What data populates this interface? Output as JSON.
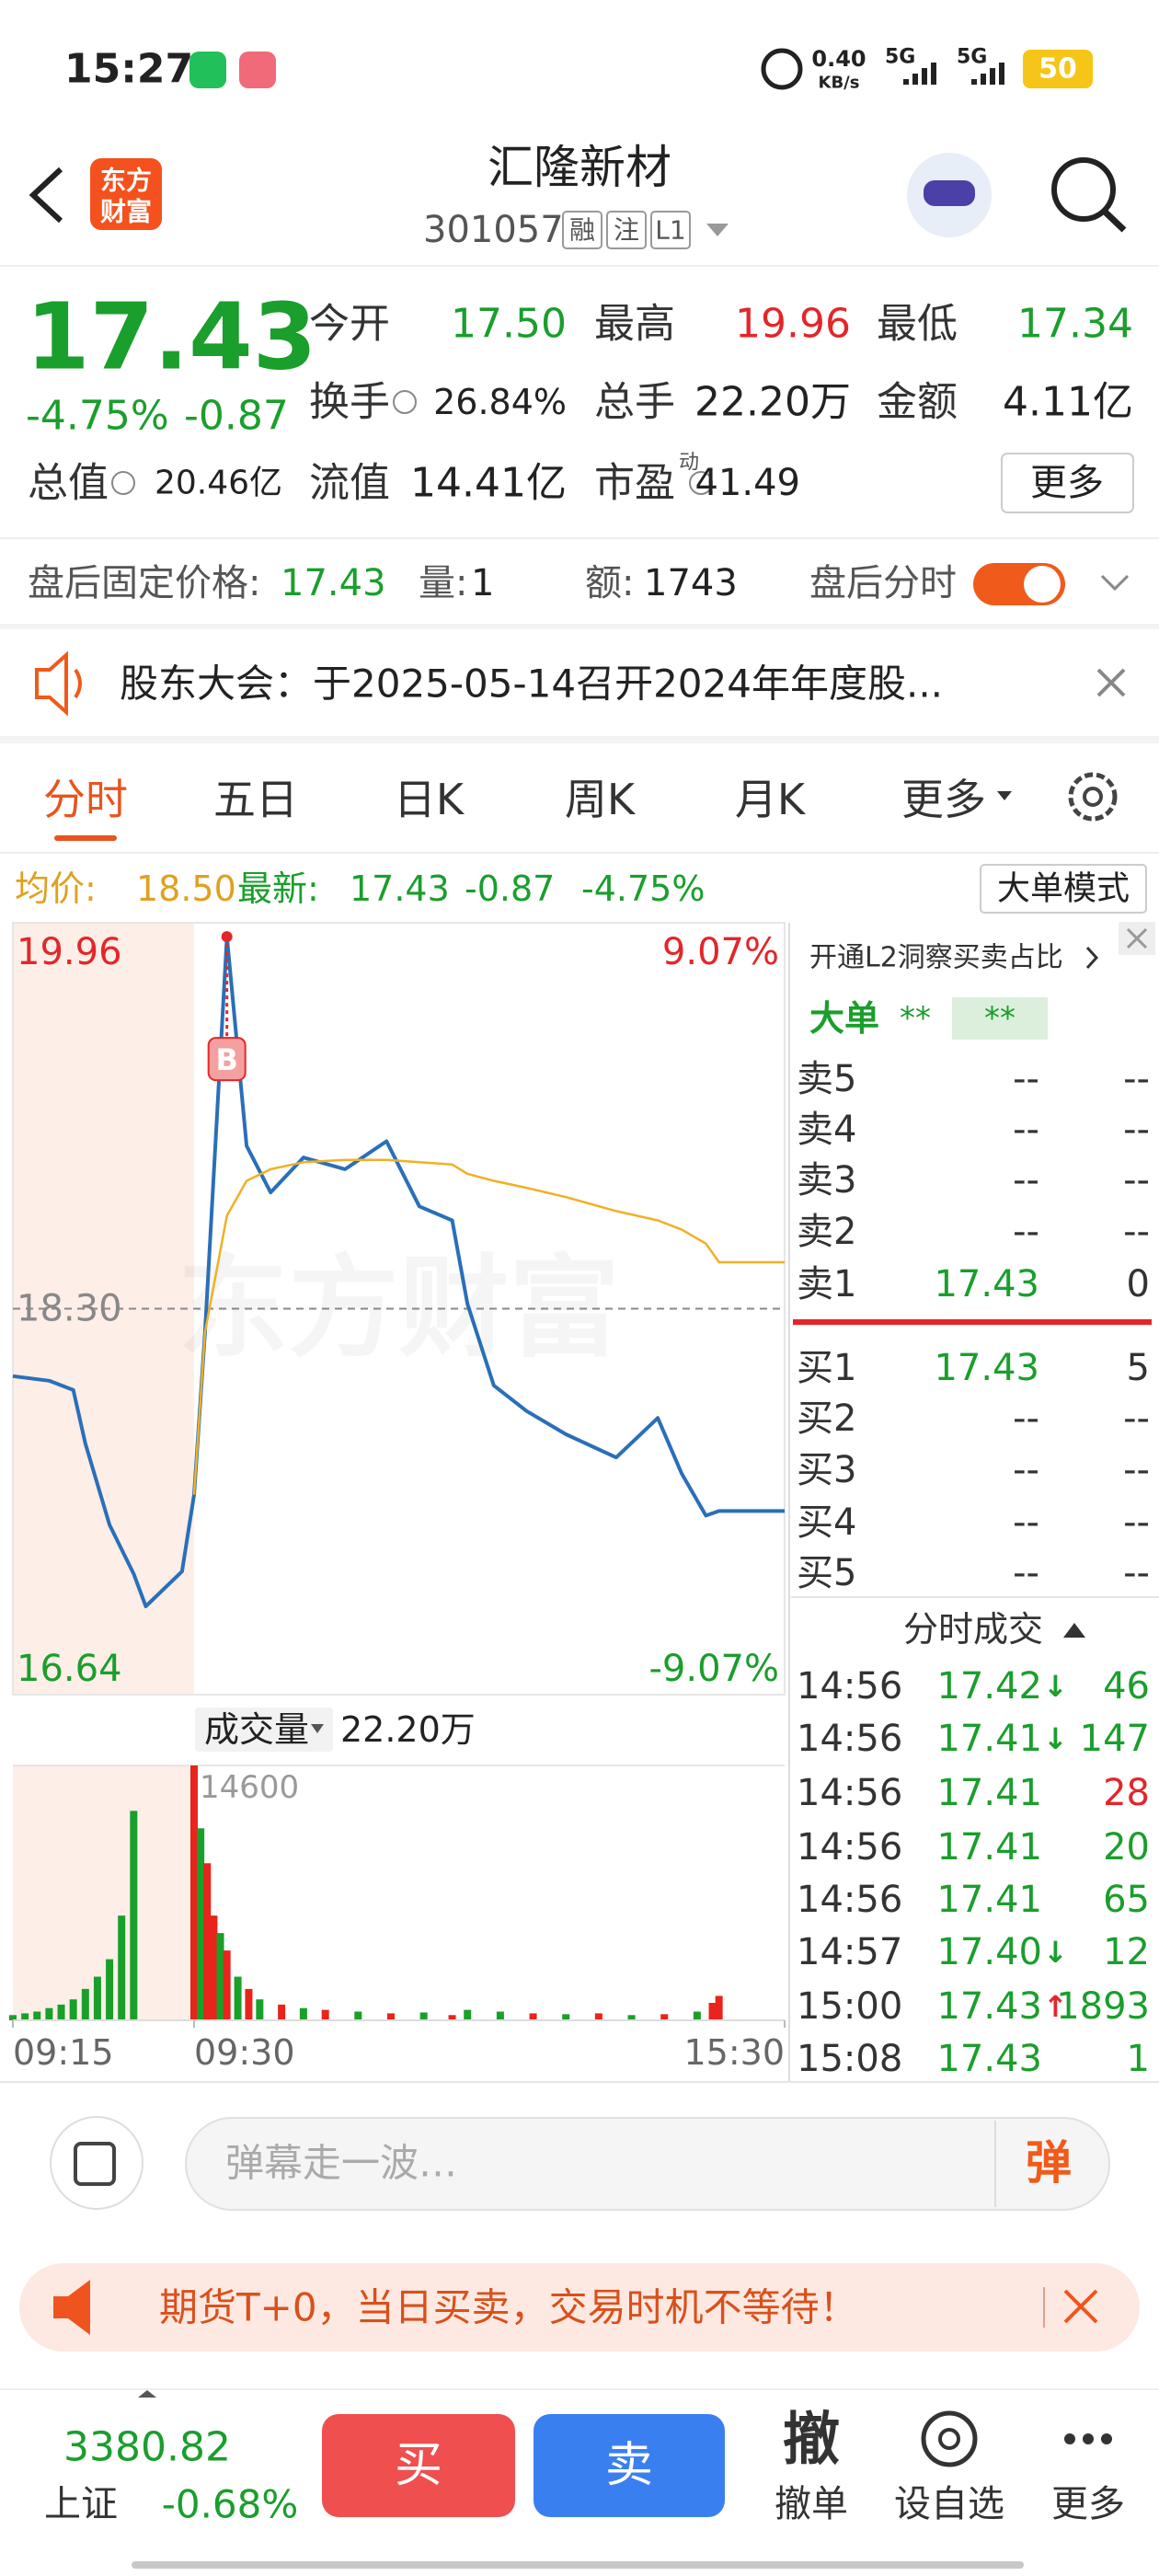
{
  "status_bar": {
    "time": "15:27",
    "speed": "0.40",
    "speed_unit": "KB/s",
    "net1": "5G",
    "net2": "5G",
    "battery": "50"
  },
  "header": {
    "logo_top": "东方",
    "logo_bottom": "财富",
    "title": "汇隆新材",
    "code": "301057",
    "tags": [
      "融",
      "注",
      "L1"
    ]
  },
  "quote": {
    "price": "17.43",
    "change_pct": "-4.75%",
    "change": "-0.87",
    "fields": [
      {
        "label": "今开",
        "value": "17.50",
        "color": "#1a9e2c"
      },
      {
        "label": "最高",
        "value": "19.96",
        "color": "#e3262a"
      },
      {
        "label": "最低",
        "value": "17.34",
        "color": "#1a9e2c"
      },
      {
        "label": "换手",
        "value": "26.84%",
        "color": "#222222"
      },
      {
        "label": "总手",
        "value": "22.20万",
        "color": "#222222"
      },
      {
        "label": "金额",
        "value": "4.11亿",
        "color": "#222222"
      },
      {
        "label": "总值",
        "value": "20.46亿",
        "color": "#222222"
      },
      {
        "label": "流值",
        "value": "14.41亿",
        "color": "#222222"
      },
      {
        "label": "市盈",
        "sup": "动",
        "value": "41.49",
        "color": "#222222"
      }
    ],
    "more": "更多"
  },
  "after_hours": {
    "label": "盘后固定价格:",
    "price": "17.43",
    "vol_label": "量:",
    "vol": "1",
    "amt_label": "额:",
    "amt": "1743",
    "toggle_label": "盘后分时"
  },
  "notice": {
    "text": "股东大会：于2025-05-14召开2024年年度股..."
  },
  "tabs": {
    "items": [
      "分时",
      "五日",
      "日K",
      "周K",
      "月K",
      "更多"
    ],
    "active": 0
  },
  "summary": {
    "avg_label": "均价:",
    "avg": "18.50",
    "last_label": "最新:",
    "last": "17.43",
    "change": "-0.87",
    "change_pct": "-4.75%"
  },
  "mode_button": "大单模式",
  "chart_data": [
    {
      "type": "line",
      "watermark": "东方财富",
      "annotation": "B",
      "x": [
        "09:15",
        "09:18",
        "09:20",
        "09:21",
        "09:23",
        "09:25",
        "09:26",
        "09:29",
        "09:30",
        "09:35",
        "09:45",
        "09:54",
        "10:05",
        "10:20",
        "10:39",
        "10:58",
        "11:13",
        "11:28",
        "13:05",
        "13:17",
        "13:32",
        "13:50",
        "14:13",
        "14:32",
        "14:43",
        "14:54",
        "15:00",
        "15:30"
      ],
      "xlim": [
        "09:15",
        "15:30"
      ],
      "series": [
        {
          "color": "#2a6fb8",
          "values": [
            18.01,
            17.99,
            17.95,
            17.72,
            17.37,
            17.16,
            17.02,
            17.17,
            17.5,
            18.2,
            19.9,
            19.0,
            18.8,
            18.95,
            18.9,
            19.02,
            18.74,
            18.68,
            18.32,
            17.97,
            17.86,
            17.76,
            17.66,
            17.83,
            17.59,
            17.41,
            17.43,
            17.43
          ]
        },
        {
          "color": "#f0b024",
          "values": [
            null,
            null,
            null,
            null,
            null,
            null,
            null,
            null,
            17.5,
            18.2,
            18.7,
            18.85,
            18.9,
            18.93,
            18.94,
            18.94,
            18.93,
            18.92,
            18.88,
            18.85,
            18.82,
            18.78,
            18.72,
            18.68,
            18.64,
            18.58,
            18.5,
            18.5
          ]
        }
      ],
      "ylim": [
        16.64,
        19.96
      ],
      "yticks": [
        19.96,
        {
          "value": 18.3,
          "label": "18.30"
        },
        16.64
      ],
      "y2lim": [
        -9.07,
        9.07
      ],
      "y2ticks": [
        {
          "value": 9.07,
          "label": "9.07%"
        },
        {
          "value": -9.07,
          "label": "-9.07%"
        }
      ]
    },
    {
      "type": "bar",
      "label": "成交量",
      "total": "22.20万",
      "x": [
        "09:15",
        "09:16",
        "09:17",
        "09:18",
        "09:19",
        "09:20",
        "09:21",
        "09:22",
        "09:23",
        "09:24",
        "09:25",
        "09:30",
        "09:33",
        "09:36",
        "09:39",
        "09:42",
        "09:45",
        "09:50",
        "09:55",
        "10:00",
        "10:10",
        "10:20",
        "10:30",
        "10:45",
        "11:00",
        "11:15",
        "11:28",
        "13:05",
        "13:20",
        "13:35",
        "13:50",
        "14:05",
        "14:20",
        "14:35",
        "14:50",
        "14:57",
        "15:00"
      ],
      "values": [
        300,
        400,
        500,
        700,
        900,
        1200,
        1800,
        2500,
        3500,
        6000,
        12000,
        14600,
        11000,
        9000,
        6000,
        5000,
        4000,
        2500,
        1800,
        1200,
        900,
        700,
        600,
        500,
        400,
        450,
        300,
        600,
        500,
        400,
        350,
        400,
        300,
        350,
        500,
        1000,
        1400
      ],
      "colors": [
        "#19a02a",
        "#19a02a",
        "#19a02a",
        "#19a02a",
        "#19a02a",
        "#19a02a",
        "#19a02a",
        "#19a02a",
        "#19a02a",
        "#19a02a",
        "#19a02a",
        "#e8241c",
        "#19a02a",
        "#e8241c",
        "#e8241c",
        "#19a02a",
        "#e8241c",
        "#19a02a",
        "#e8241c",
        "#19a02a",
        "#e8241c",
        "#19a02a",
        "#e8241c",
        "#19a02a",
        "#e8241c",
        "#19a02a",
        "#e8241c",
        "#19a02a",
        "#19a02a",
        "#e8241c",
        "#19a02a",
        "#e8241c",
        "#19a02a",
        "#e8241c",
        "#19a02a",
        "#e8241c",
        "#e8241c"
      ],
      "xlim": [
        "09:15",
        "15:30"
      ],
      "xticks": [
        "09:15",
        "09:30",
        "15:30"
      ],
      "ylim": [
        0,
        14600
      ],
      "yticks": [
        14600
      ]
    }
  ],
  "order_book": {
    "promo": "开通L2洞察买卖占比",
    "big_order_label": "大单",
    "big_order_buy": "**",
    "big_order_sell": "**",
    "asks": [
      {
        "label": "卖5",
        "price": "--",
        "volume": "--"
      },
      {
        "label": "卖4",
        "price": "--",
        "volume": "--"
      },
      {
        "label": "卖3",
        "price": "--",
        "volume": "--"
      },
      {
        "label": "卖2",
        "price": "--",
        "volume": "--"
      },
      {
        "label": "卖1",
        "price": "17.43",
        "volume": "0"
      }
    ],
    "bids": [
      {
        "label": "买1",
        "price": "17.43",
        "volume": "5"
      },
      {
        "label": "买2",
        "price": "--",
        "volume": "--"
      },
      {
        "label": "买3",
        "price": "--",
        "volume": "--"
      },
      {
        "label": "买4",
        "price": "--",
        "volume": "--"
      },
      {
        "label": "买5",
        "price": "--",
        "volume": "--"
      }
    ]
  },
  "trades": {
    "title": "分时成交",
    "rows": [
      {
        "time": "14:56",
        "price": "17.42",
        "arrow": "↓",
        "volume": "46",
        "volume_color": "#1a9e2c"
      },
      {
        "time": "14:56",
        "price": "17.41",
        "arrow": "↓",
        "volume": "147",
        "volume_color": "#1a9e2c"
      },
      {
        "time": "14:56",
        "price": "17.41",
        "volume": "28",
        "volume_color": "#e3262a"
      },
      {
        "time": "14:56",
        "price": "17.41",
        "volume": "20",
        "volume_color": "#1a9e2c"
      },
      {
        "time": "14:56",
        "price": "17.41",
        "volume": "65",
        "volume_color": "#1a9e2c"
      },
      {
        "time": "14:57",
        "price": "17.40",
        "arrow": "↓",
        "volume": "12",
        "volume_color": "#1a9e2c"
      },
      {
        "time": "15:00",
        "price": "17.43",
        "arrow": "↑",
        "volume": "1893",
        "volume_color": "#1a9e2c"
      },
      {
        "time": "15:08",
        "price": "17.43",
        "volume": "1",
        "volume_color": "#1a9e2c"
      }
    ]
  },
  "comment": {
    "placeholder": "弹幕走一波…",
    "button": "弹"
  },
  "ad": {
    "text": "期货T+0，当日买卖，交易时机不等待！"
  },
  "bottom_bar": {
    "index_value": "3380.82",
    "index_name": "上证",
    "index_change": "-0.68%",
    "buy": "买",
    "sell": "卖",
    "cancel_icon": "撤",
    "cancel": "撤单",
    "watchlist": "设自选",
    "more": "更多"
  }
}
